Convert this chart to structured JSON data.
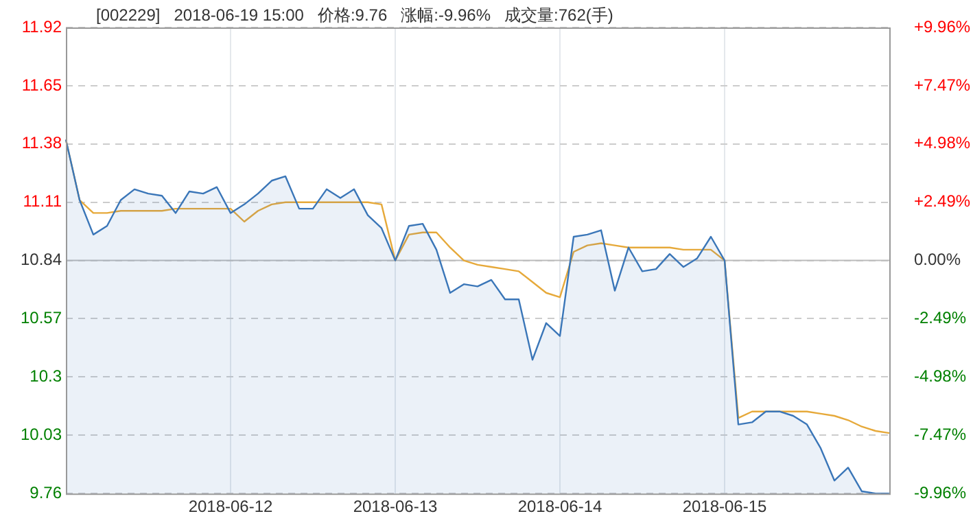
{
  "chart_data": {
    "type": "area",
    "title": "[002229]   2018-06-19 15:00   价格:9.76   涨幅:-9.96%   成交量:762(手)",
    "categories": [
      null,
      null,
      null,
      null,
      null,
      null,
      null,
      null,
      null,
      null,
      null,
      null,
      "2018-06-12",
      null,
      null,
      null,
      null,
      null,
      null,
      null,
      null,
      null,
      null,
      null,
      "2018-06-13",
      null,
      null,
      null,
      null,
      null,
      null,
      null,
      null,
      null,
      null,
      null,
      "2018-06-14",
      null,
      null,
      null,
      null,
      null,
      null,
      null,
      null,
      null,
      null,
      null,
      "2018-06-15",
      null,
      null,
      null,
      null,
      null,
      null,
      null,
      null,
      null,
      null,
      null,
      null
    ],
    "ylim": [
      9.76,
      11.92
    ],
    "yticks": [
      9.76,
      10.03,
      10.3,
      10.57,
      10.84,
      11.11,
      11.38,
      11.65,
      11.92
    ],
    "y2lim": [
      -9.96,
      9.96
    ],
    "y2ticks": [
      {
        "value": -9.96,
        "label": "-9.96%"
      },
      {
        "value": -7.47,
        "label": "-7.47%"
      },
      {
        "value": -4.98,
        "label": "-4.98%"
      },
      {
        "value": -2.49,
        "label": "-2.49%"
      },
      {
        "value": 0,
        "label": "0.00%"
      },
      {
        "value": 2.49,
        "label": "+2.49%"
      },
      {
        "value": 4.98,
        "label": "+4.98%"
      },
      {
        "value": 7.47,
        "label": "+7.47%"
      },
      {
        "value": 9.96,
        "label": "+9.96%"
      }
    ],
    "grid": true,
    "legend": false,
    "ref_lines": [
      {
        "axis": "y",
        "value": 10.84,
        "color": "#bbbbbb",
        "line_style": "solid"
      }
    ],
    "series": [
      {
        "color": "#3a76b8",
        "values": [
          11.4,
          11.12,
          10.96,
          11.0,
          11.12,
          11.17,
          11.15,
          11.14,
          11.06,
          11.16,
          11.15,
          11.18,
          11.06,
          11.1,
          11.15,
          11.21,
          11.23,
          11.08,
          11.08,
          11.17,
          11.13,
          11.17,
          11.05,
          10.99,
          10.84,
          11.0,
          11.01,
          10.89,
          10.69,
          10.73,
          10.72,
          10.75,
          10.66,
          10.66,
          10.38,
          10.55,
          10.49,
          10.95,
          10.96,
          10.98,
          10.7,
          10.9,
          10.79,
          10.8,
          10.87,
          10.81,
          10.85,
          10.95,
          10.84,
          10.08,
          10.09,
          10.14,
          10.14,
          10.12,
          10.08,
          9.97,
          9.82,
          9.88,
          9.77,
          9.76,
          9.76
        ]
      },
      {
        "type": "line",
        "color": "#e6a93a",
        "values": [
          11.4,
          11.12,
          11.06,
          11.06,
          11.07,
          11.07,
          11.07,
          11.07,
          11.08,
          11.08,
          11.08,
          11.08,
          11.08,
          11.02,
          11.07,
          11.1,
          11.11,
          11.11,
          11.11,
          11.11,
          11.11,
          11.11,
          11.11,
          11.1,
          10.84,
          10.96,
          10.97,
          10.97,
          10.9,
          10.84,
          10.82,
          10.81,
          10.8,
          10.79,
          10.74,
          10.69,
          10.67,
          10.88,
          10.91,
          10.92,
          10.91,
          10.9,
          10.9,
          10.9,
          10.9,
          10.89,
          10.89,
          10.89,
          10.84,
          10.11,
          10.14,
          10.14,
          10.14,
          10.14,
          10.14,
          10.13,
          10.12,
          10.1,
          10.07,
          10.05,
          10.04
        ]
      }
    ]
  }
}
